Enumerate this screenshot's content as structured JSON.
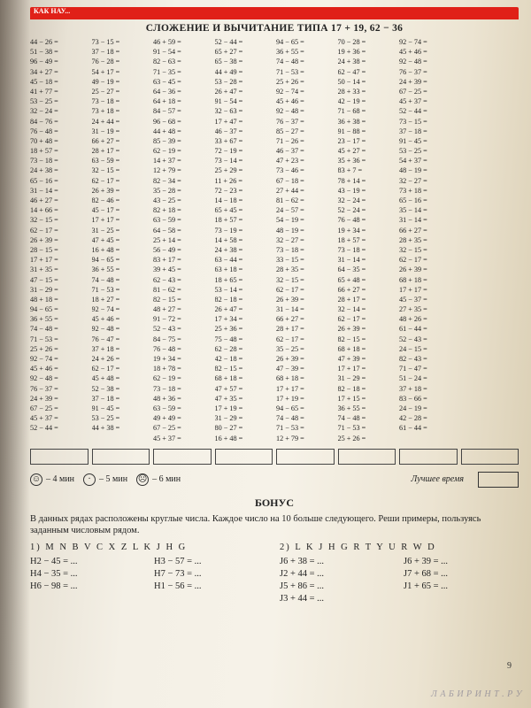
{
  "header": {
    "partial_text": "КАК НАУ..."
  },
  "title": "СЛОЖЕНИЕ И ВЫЧИТАНИЕ ТИПА 17 + 19, 62 − 36",
  "columns": [
    [
      "44 − 26 =",
      "51 − 38 =",
      "96 − 49 =",
      "34 + 27 =",
      "45 − 18 =",
      "41 + 77 =",
      "53 − 25 =",
      "32 − 24 =",
      "84 − 76 =",
      "76 − 48 =",
      "70 + 48 =",
      "18 + 57 =",
      "73 − 18 =",
      "24 + 38 =",
      "65 − 16 =",
      "31 − 14 =",
      "46 + 27 =",
      "14 + 66 =",
      "32 − 15 =",
      "62 − 17 =",
      "26 + 39 =",
      "28 − 15 =",
      "17 + 17 =",
      "31 + 35 =",
      "47 − 15 =",
      "31 − 29 =",
      "48 + 18 =",
      "94 − 65 =",
      "36 + 55 =",
      "74 − 48 =",
      "71 − 53 =",
      "25 + 26 =",
      "92 − 74 =",
      "45 + 46 =",
      "92 − 48 =",
      "76 − 37 =",
      "24 + 39 =",
      "67 − 25 =",
      "45 + 37 =",
      "52 − 44 ="
    ],
    [
      "73 − 15 =",
      "37 − 18 =",
      "76 − 28 =",
      "54 + 17 =",
      "49 − 19 =",
      "25 − 27 =",
      "73 − 18 =",
      "73 + 18 =",
      "24 + 44 =",
      "31 − 19 =",
      "66 + 27 =",
      "28 + 17 =",
      "63 − 59 =",
      "32 − 15 =",
      "62 − 17 =",
      "26 + 39 =",
      "82 − 46 =",
      "45 − 17 =",
      "17 + 17 =",
      "31 − 25 =",
      "47 + 45 =",
      "16 + 48 =",
      "94 − 65 =",
      "36 + 55 =",
      "74 − 48 =",
      "71 − 53 =",
      "18 + 27 =",
      "92 − 74 =",
      "45 + 46 =",
      "92 − 48 =",
      "76 − 47 =",
      "37 + 18 =",
      "24 + 26 =",
      "62 − 17 =",
      "45 + 48 =",
      "52 − 38 =",
      "37 − 18 =",
      "91 − 45 =",
      "53 − 25 =",
      "44 + 38 ="
    ],
    [
      "46 + 59 =",
      "91 − 54 =",
      "82 − 63 =",
      "71 − 35 =",
      "63 − 45 =",
      "64 − 36 =",
      "64 + 18 =",
      "84 − 57 =",
      "96 − 68 =",
      "44 + 48 =",
      "85 − 39 =",
      "62 − 19 =",
      "14 + 37 =",
      "12 + 79 =",
      "82 − 34 =",
      "35 − 28 =",
      "43 − 25 =",
      "82 + 18 =",
      "63 − 59 =",
      "64 − 58 =",
      "25 + 14 =",
      "56 − 49 =",
      "83 + 17 =",
      "39 + 45 =",
      "62 − 43 =",
      "81 − 62 =",
      "82 − 15 =",
      "48 + 27 =",
      "91 − 72 =",
      "52 − 43 =",
      "84 − 75 =",
      "76 − 48 =",
      "19 + 34 =",
      "18 + 78 =",
      "62 − 19 =",
      "73 − 18 =",
      "48 + 36 =",
      "63 − 59 =",
      "49 + 49 =",
      "67 − 25 =",
      "45 + 37 ="
    ],
    [
      "52 − 44 =",
      "65 + 27 =",
      "65 − 38 =",
      "44 + 49 =",
      "53 − 28 =",
      "26 + 47 =",
      "91 − 54 =",
      "32 − 63 =",
      "17 + 47 =",
      "46 − 37 =",
      "33 + 67 =",
      "72 − 19 =",
      "73 − 14 =",
      "25 + 29 =",
      "11 + 26 =",
      "72 − 23 =",
      "14 − 18 =",
      "65 + 45 =",
      "18 + 57 =",
      "73 − 19 =",
      "14 + 58 =",
      "24 + 38 =",
      "63 − 44 =",
      "63 + 18 =",
      "18 + 65 =",
      "53 − 14 =",
      "82 − 18 =",
      "26 + 47 =",
      "17 + 34 =",
      "25 + 36 =",
      "75 − 48 =",
      "62 − 28 =",
      "42 − 18 =",
      "82 − 15 =",
      "68 + 18 =",
      "47 + 57 =",
      "47 + 35 =",
      "17 + 19 =",
      "31 − 29 =",
      "80 − 27 =",
      "16 + 48 ="
    ],
    [
      "94 − 65 =",
      "36 + 55 =",
      "74 − 48 =",
      "71 − 53 =",
      "25 + 26 =",
      "92 − 74 =",
      "45 + 46 =",
      "92 − 48 =",
      "76 − 37 =",
      "85 − 27 =",
      "71 − 26 =",
      "46 − 37 =",
      "47 + 23 =",
      "73 − 46 =",
      "67 − 18 =",
      "27 + 44 =",
      "81 − 62 =",
      "24 − 57 =",
      "54 − 19 =",
      "48 − 19 =",
      "32 − 27 =",
      "73 − 18 =",
      "33 − 15 =",
      "28 + 35 =",
      "32 − 15 =",
      "62 − 17 =",
      "26 + 39 =",
      "31 − 14 =",
      "66 + 27 =",
      "28 + 17 =",
      "62 − 17 =",
      "35 − 25 =",
      "26 + 39 =",
      "47 − 39 =",
      "68 + 18 =",
      "17 + 17 =",
      "17 + 19 =",
      "94 − 65 =",
      "74 − 48 =",
      "71 − 53 =",
      "12 + 79 ="
    ],
    [
      "70 − 28 =",
      "19 + 36 =",
      "24 + 38 =",
      "62 − 47 =",
      "50 − 14 =",
      "28 + 33 =",
      "42 − 19 =",
      "71 − 68 =",
      "36 + 38 =",
      "91 − 88 =",
      "23 − 17 =",
      "45 + 27 =",
      "35 + 36 =",
      "83 + 7 =",
      "78 + 14 =",
      "43 − 19 =",
      "32 − 24 =",
      "52 − 24 =",
      "76 − 48 =",
      "19 + 34 =",
      "18 + 57 =",
      "73 − 18 =",
      "31 − 14 =",
      "64 − 35 =",
      "65 + 48 =",
      "66 + 27 =",
      "28 + 17 =",
      "32 − 14 =",
      "62 − 17 =",
      "26 + 39 =",
      "82 − 15 =",
      "68 + 18 =",
      "47 + 39 =",
      "17 + 17 =",
      "31 − 29 =",
      "82 − 18 =",
      "17 + 15 =",
      "36 + 55 =",
      "74 − 48 =",
      "71 − 53 =",
      "25 + 26 ="
    ],
    [
      "92 − 74 =",
      "45 + 46 =",
      "92 − 48 =",
      "76 − 37 =",
      "24 + 39 =",
      "67 − 25 =",
      "45 + 37 =",
      "52 − 44 =",
      "73 − 15 =",
      "37 − 18 =",
      "91 − 45 =",
      "53 − 25 =",
      "54 + 37 =",
      "48 − 19 =",
      "32 − 27 =",
      "73 + 18 =",
      "65 − 16 =",
      "35 − 14 =",
      "31 − 14 =",
      "66 + 27 =",
      "28 + 35 =",
      "32 − 15 =",
      "62 − 17 =",
      "26 + 39 =",
      "68 + 18 =",
      "17 + 17 =",
      "45 − 37 =",
      "27 + 35 =",
      "48 + 26 =",
      "61 − 44 =",
      "52 − 43 =",
      "24 − 15 =",
      "82 − 43 =",
      "71 − 47 =",
      "51 − 24 =",
      "37 + 18 =",
      "83 − 66 =",
      "24 − 19 =",
      "42 − 28 =",
      "61 − 44 ="
    ],
    [
      "",
      "",
      "",
      "",
      "",
      "",
      "",
      "",
      "",
      "",
      "",
      "",
      "",
      "",
      "",
      "",
      "",
      "",
      "",
      "",
      "",
      "",
      "",
      "",
      "",
      "",
      "",
      "",
      "",
      "",
      "",
      "",
      "",
      "",
      "",
      "",
      "",
      "",
      "",
      ""
    ]
  ],
  "timing": {
    "t1": "– 4 мин",
    "t2": "– 5 мин",
    "t3": "– 6 мин",
    "best_label": "Лучшее время"
  },
  "bonus": {
    "title": "БОНУС",
    "text": "В данных рядах расположены круглые числа. Каждое число на 10 больше следующего. Реши примеры, пользуясь заданным числовым рядом.",
    "left": {
      "seq": "1) M N B V C X Z L K J H G",
      "lines": [
        "H2 − 45 = ...",
        "H3 − 57 = ...",
        "H4 − 35 = ...",
        "H7 − 73 = ...",
        "H6 − 98 = ...",
        "H1 − 56 = ..."
      ]
    },
    "right": {
      "seq": "2) L K J H G R T Y U R W D",
      "lines": [
        "J6 + 38 = ...",
        "J6 + 39 = ...",
        "J2 + 44 = ...",
        "J7 + 68 = ...",
        "J5 + 86 = ...",
        "J1 + 65 = ...",
        "J3 + 44 = ..."
      ]
    }
  },
  "page_no": "9",
  "watermark": "Л А Б И Р И Н Т . Р У"
}
